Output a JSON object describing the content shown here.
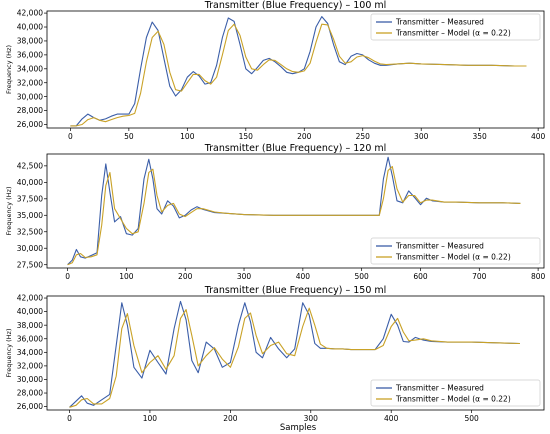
{
  "figure": {
    "xlabel": "Samples"
  },
  "colors": {
    "measured": "#3b5ea8",
    "model": "#c9a227",
    "frame": "#000000"
  },
  "chart_data": [
    {
      "type": "line",
      "title": "Transmitter (Blue Frequency) – 100 ml",
      "xlabel": "",
      "ylabel": "Frequency (Hz)",
      "xlim": [
        -20,
        405
      ],
      "ylim": [
        25500,
        42300
      ],
      "xticks": [
        0,
        50,
        100,
        150,
        200,
        250,
        300,
        350,
        400
      ],
      "xtick_labels": [
        "0",
        "50",
        "100",
        "150",
        "200",
        "250",
        "300",
        "350",
        "400"
      ],
      "yticks": [
        26000,
        28000,
        30000,
        32000,
        34000,
        36000,
        38000,
        40000,
        42000
      ],
      "ytick_labels": [
        "26,000",
        "28,000",
        "30,000",
        "32,000",
        "34,000",
        "36,000",
        "38,000",
        "40,000",
        "42,000"
      ],
      "legend": {
        "placement": "top-right"
      },
      "series": [
        {
          "name": "Transmitter – Measured",
          "x": [
            0,
            5,
            10,
            15,
            20,
            25,
            30,
            35,
            40,
            45,
            50,
            55,
            60,
            65,
            70,
            75,
            80,
            85,
            90,
            95,
            100,
            105,
            110,
            115,
            120,
            125,
            130,
            135,
            140,
            145,
            150,
            155,
            160,
            165,
            170,
            175,
            180,
            185,
            190,
            195,
            200,
            205,
            210,
            215,
            220,
            225,
            230,
            235,
            240,
            245,
            250,
            255,
            260,
            265,
            270,
            280,
            290,
            300,
            320,
            340,
            360,
            380,
            390
          ],
          "y": [
            25800,
            25800,
            26800,
            27500,
            27000,
            26600,
            26800,
            27200,
            27500,
            27500,
            27500,
            29000,
            34000,
            38500,
            40700,
            39500,
            35500,
            31500,
            30100,
            31000,
            32800,
            33600,
            33000,
            31800,
            32000,
            34500,
            38500,
            41300,
            40800,
            37500,
            34000,
            33300,
            34200,
            35200,
            35500,
            35000,
            34300,
            33500,
            33300,
            33500,
            34000,
            36500,
            40000,
            41500,
            40500,
            37500,
            35000,
            34600,
            35800,
            36200,
            36000,
            35300,
            34800,
            34500,
            34500,
            34700,
            34800,
            34700,
            34600,
            34500,
            34500,
            34400,
            34400
          ]
        },
        {
          "name": "Transmitter – Model (α = 0.22)",
          "x": [
            0,
            5,
            10,
            15,
            20,
            25,
            30,
            35,
            40,
            45,
            50,
            55,
            60,
            65,
            70,
            75,
            80,
            85,
            90,
            95,
            100,
            105,
            110,
            115,
            120,
            125,
            130,
            135,
            140,
            145,
            150,
            155,
            160,
            165,
            170,
            175,
            180,
            185,
            190,
            195,
            200,
            205,
            210,
            215,
            220,
            225,
            230,
            235,
            240,
            245,
            250,
            255,
            260,
            265,
            270,
            280,
            290,
            300,
            320,
            340,
            360,
            380,
            390
          ],
          "y": [
            25800,
            25800,
            26000,
            26700,
            27000,
            26600,
            26400,
            26700,
            27000,
            27200,
            27300,
            27600,
            30500,
            35000,
            38500,
            39400,
            37500,
            33500,
            31000,
            30800,
            32000,
            33200,
            33200,
            32300,
            31800,
            32800,
            36000,
            39500,
            40400,
            38800,
            35700,
            34000,
            33800,
            34600,
            35300,
            35200,
            34600,
            34000,
            33600,
            33500,
            33700,
            34800,
            37800,
            40400,
            40300,
            38300,
            35800,
            34800,
            35000,
            35700,
            35900,
            35600,
            35100,
            34700,
            34600,
            34700,
            34800,
            34700,
            34600,
            34500,
            34500,
            34400,
            34400
          ]
        }
      ]
    },
    {
      "type": "line",
      "title": "Transmitter (Blue Frequency) – 120 ml",
      "xlabel": "",
      "ylabel": "Frequency (Hz)",
      "xlim": [
        -35,
        810
      ],
      "ylim": [
        27000,
        44300
      ],
      "xticks": [
        0,
        100,
        200,
        300,
        400,
        500,
        600,
        700,
        800
      ],
      "xtick_labels": [
        "0",
        "100",
        "200",
        "300",
        "400",
        "500",
        "600",
        "700",
        "800"
      ],
      "yticks": [
        27500,
        30000,
        32500,
        35000,
        37500,
        40000,
        42500
      ],
      "ytick_labels": [
        "27,500",
        "30,000",
        "32,500",
        "35,000",
        "37,500",
        "40,000",
        "42,500"
      ],
      "legend": {
        "placement": "lower-right"
      },
      "series": [
        {
          "name": "Transmitter – Measured",
          "x": [
            0,
            8,
            15,
            22,
            30,
            40,
            50,
            58,
            65,
            72,
            80,
            90,
            100,
            110,
            120,
            130,
            138,
            145,
            152,
            160,
            170,
            180,
            190,
            200,
            210,
            220,
            230,
            250,
            270,
            300,
            350,
            400,
            450,
            500,
            530,
            537,
            545,
            552,
            560,
            570,
            580,
            590,
            600,
            610,
            620,
            640,
            660,
            700,
            740,
            770
          ],
          "y": [
            27500,
            28200,
            29800,
            28700,
            28500,
            28900,
            29300,
            38000,
            42800,
            38500,
            34000,
            34800,
            32200,
            32000,
            33000,
            40500,
            43500,
            40500,
            36000,
            35200,
            37200,
            36400,
            34600,
            35000,
            35800,
            36300,
            35900,
            35400,
            35300,
            35100,
            35000,
            35000,
            35000,
            35000,
            35000,
            40500,
            43800,
            41000,
            37200,
            36900,
            38700,
            37700,
            36600,
            37600,
            37200,
            37000,
            37000,
            36900,
            36900,
            36800
          ]
        },
        {
          "name": "Transmitter – Model (α = 0.22)",
          "x": [
            0,
            8,
            15,
            22,
            30,
            40,
            50,
            58,
            65,
            72,
            80,
            90,
            100,
            110,
            120,
            130,
            138,
            145,
            152,
            160,
            170,
            180,
            190,
            200,
            210,
            220,
            230,
            250,
            270,
            300,
            350,
            400,
            450,
            500,
            530,
            537,
            545,
            552,
            560,
            570,
            580,
            590,
            600,
            610,
            620,
            640,
            660,
            700,
            740,
            770
          ],
          "y": [
            27500,
            27800,
            29000,
            29200,
            28600,
            28700,
            29000,
            33500,
            39500,
            41500,
            36000,
            34500,
            33000,
            32200,
            32500,
            36800,
            41500,
            42000,
            38000,
            35500,
            36500,
            36800,
            35200,
            34800,
            35400,
            36000,
            36000,
            35500,
            35300,
            35100,
            35000,
            35000,
            35000,
            35000,
            35000,
            37500,
            41800,
            42400,
            39000,
            37000,
            38000,
            38000,
            36900,
            37300,
            37300,
            37000,
            37000,
            36900,
            36900,
            36800
          ]
        }
      ]
    },
    {
      "type": "line",
      "title": "Transmitter (Blue Frequency) – 150 ml",
      "xlabel": "Samples",
      "ylabel": "Frequency (Hz)",
      "xlim": [
        -28,
        590
      ],
      "ylim": [
        25500,
        42300
      ],
      "xticks": [
        0,
        100,
        200,
        300,
        400,
        500
      ],
      "xtick_labels": [
        "0",
        "100",
        "200",
        "300",
        "400",
        "500"
      ],
      "yticks": [
        26000,
        28000,
        30000,
        32000,
        34000,
        36000,
        38000,
        40000,
        42000
      ],
      "ytick_labels": [
        "26,000",
        "28,000",
        "30,000",
        "32,000",
        "34,000",
        "36,000",
        "38,000",
        "40,000",
        "42,000"
      ],
      "legend": {
        "placement": "lower-right"
      },
      "series": [
        {
          "name": "Transmitter – Measured",
          "x": [
            0,
            8,
            15,
            22,
            30,
            40,
            50,
            58,
            65,
            72,
            80,
            90,
            100,
            110,
            120,
            130,
            138,
            145,
            152,
            160,
            170,
            180,
            190,
            200,
            210,
            218,
            225,
            232,
            240,
            250,
            260,
            270,
            280,
            290,
            298,
            305,
            312,
            320,
            330,
            340,
            350,
            360,
            370,
            380,
            390,
            400,
            408,
            415,
            422,
            430,
            440,
            450,
            470,
            500,
            530,
            560
          ],
          "y": [
            25900,
            26800,
            27600,
            26500,
            26200,
            27000,
            27800,
            35000,
            41300,
            38000,
            31800,
            30200,
            34300,
            32500,
            30800,
            37500,
            41500,
            38800,
            32800,
            31000,
            35500,
            34500,
            31800,
            32500,
            38000,
            41300,
            38500,
            34000,
            33200,
            36200,
            34500,
            33200,
            34500,
            41300,
            39500,
            35300,
            34600,
            34600,
            34500,
            34500,
            34400,
            34400,
            34400,
            34400,
            36000,
            39600,
            38000,
            35600,
            35500,
            36200,
            35800,
            35600,
            35500,
            35500,
            35400,
            35300
          ]
        },
        {
          "name": "Transmitter – Model (α = 0.22)",
          "x": [
            0,
            8,
            15,
            22,
            30,
            40,
            50,
            58,
            65,
            72,
            80,
            90,
            100,
            110,
            120,
            130,
            138,
            145,
            152,
            160,
            170,
            180,
            190,
            200,
            210,
            218,
            225,
            232,
            240,
            250,
            260,
            270,
            280,
            290,
            298,
            305,
            312,
            320,
            330,
            340,
            350,
            360,
            370,
            380,
            390,
            400,
            408,
            415,
            422,
            430,
            440,
            450,
            470,
            500,
            530,
            560
          ],
          "y": [
            25900,
            26200,
            27000,
            27200,
            26400,
            26400,
            27200,
            30500,
            37500,
            39700,
            35000,
            31000,
            32500,
            33500,
            31500,
            33500,
            39000,
            40300,
            36500,
            32000,
            33500,
            34700,
            33000,
            31800,
            34800,
            39000,
            39800,
            36500,
            33800,
            35000,
            35500,
            33800,
            33500,
            37800,
            40500,
            38000,
            35200,
            34600,
            34500,
            34500,
            34400,
            34400,
            34400,
            34400,
            35000,
            37800,
            39000,
            37000,
            35700,
            35800,
            36000,
            35700,
            35500,
            35500,
            35400,
            35300
          ]
        }
      ]
    }
  ]
}
